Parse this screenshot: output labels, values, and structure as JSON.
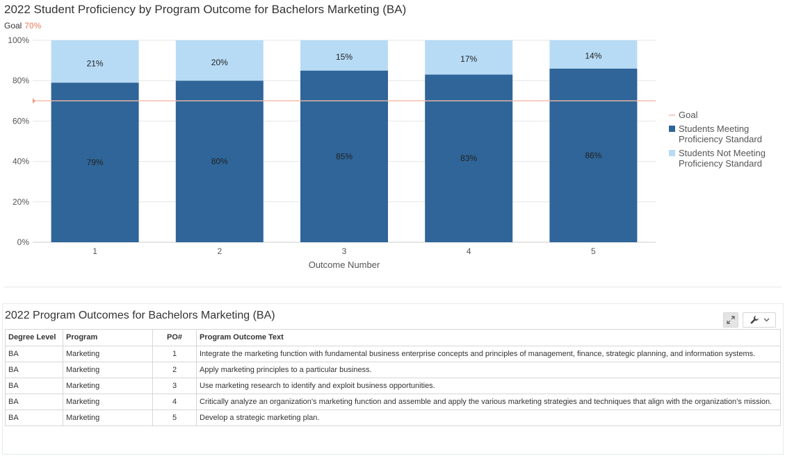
{
  "chart_data": {
    "type": "bar",
    "stacked": true,
    "title": "2022 Student Proficiency by Program Outcome for Bachelors Marketing (BA)",
    "goal_caption": "Goal",
    "goal_value_label": "70%",
    "goal": 70,
    "categories": [
      "1",
      "2",
      "3",
      "4",
      "5"
    ],
    "series": [
      {
        "name": "Students Meeting Proficiency Standard",
        "values": [
          79,
          80,
          85,
          83,
          86
        ],
        "labels": [
          "79%",
          "80%",
          "85%",
          "83%",
          "86%"
        ],
        "color": "#2f6598"
      },
      {
        "name": "Students Not Meeting Proficiency Standard",
        "values": [
          21,
          20,
          15,
          17,
          14
        ],
        "labels": [
          "21%",
          "20%",
          "15%",
          "17%",
          "14%"
        ],
        "color": "#b7dbf5"
      }
    ],
    "legend": [
      {
        "label": "Goal",
        "color": "#f5b8a6",
        "kind": "line"
      },
      {
        "label_lines": [
          "Students Meeting",
          "Proficiency Standard"
        ],
        "color": "#2f6598",
        "kind": "square"
      },
      {
        "label_lines": [
          "Students Not Meeting",
          "Proficiency Standard"
        ],
        "color": "#b7dbf5",
        "kind": "square"
      }
    ],
    "legend_position": "right",
    "xlabel": "Outcome Number",
    "ylabel": "",
    "ylim": [
      0,
      100
    ],
    "yticks": [
      0,
      20,
      40,
      60,
      80,
      100
    ],
    "ytick_labels": [
      "0%",
      "20%",
      "40%",
      "60%",
      "80%",
      "100%"
    ],
    "grid": true,
    "goal_line_color": "#f5b8a6"
  },
  "table_panel": {
    "title": "2022 Program Outcomes for Bachelors Marketing (BA)",
    "columns": [
      "Degree Level",
      "Program",
      "PO#",
      "Program Outcome Text"
    ],
    "rows": [
      [
        "BA",
        "Marketing",
        "1",
        "Integrate the marketing function with fundamental business enterprise concepts and principles of management, finance, strategic planning, and information systems."
      ],
      [
        "BA",
        "Marketing",
        "2",
        "Apply marketing principles to a particular business."
      ],
      [
        "BA",
        "Marketing",
        "3",
        "Use marketing research to identify and exploit business opportunities."
      ],
      [
        "BA",
        "Marketing",
        "4",
        "Critically analyze an organization’s marketing function and assemble and apply the various marketing strategies and techniques that align with the organization’s mission."
      ],
      [
        "BA",
        "Marketing",
        "5",
        "Develop a strategic marketing plan."
      ]
    ]
  },
  "icons": {
    "expand": "expand-icon",
    "wrench": "wrench-icon",
    "dropdown": "chevron-down-icon"
  }
}
